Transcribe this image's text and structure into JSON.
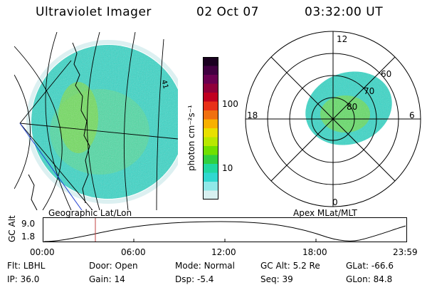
{
  "header": {
    "instrument": "Ultraviolet Imager",
    "date": "02 Oct 07",
    "time": "03:32:00 UT"
  },
  "colorbar": {
    "unit_label": "photon cm⁻²s⁻¹",
    "ticks": [
      "100",
      "10"
    ],
    "colors": [
      "#1a0020",
      "#400040",
      "#6a0050",
      "#90003a",
      "#c00020",
      "#e83018",
      "#f07010",
      "#f8b000",
      "#e8e000",
      "#b8e800",
      "#70e000",
      "#30d040",
      "#20d8a0",
      "#30d8d0",
      "#90e8e8",
      "#d8f0f0"
    ]
  },
  "map_left": {
    "label": "Geographic Lat/Lon",
    "contour_label": "41"
  },
  "map_right": {
    "label": "Apex MLat/MLT",
    "mlt_labels": {
      "top": "12",
      "left": "18",
      "right": "6",
      "bottom": "0"
    },
    "lat_labels": [
      "60",
      "70",
      "80"
    ]
  },
  "altitude_plot": {
    "ylabel": "GC Alt",
    "yticks": [
      "9.0",
      "1.8"
    ],
    "xticks": [
      "00:00",
      "06:00",
      "12:00",
      "18:00",
      "23:59"
    ],
    "current_time_marker": "03:32"
  },
  "status": {
    "row1": [
      {
        "label": "Flt:",
        "value": "LBHL"
      },
      {
        "label": "Door:",
        "value": "Open"
      },
      {
        "label": "Mode:",
        "value": "Normal"
      },
      {
        "label": "GC Alt:",
        "value": "5.2 Re"
      },
      {
        "label": "GLat:",
        "value": "-66.6"
      }
    ],
    "row2": [
      {
        "label": "IP:",
        "value": "36.0"
      },
      {
        "label": "Gain:",
        "value": "14"
      },
      {
        "label": "Dsp:",
        "value": "-5.4"
      },
      {
        "label": "Seq:",
        "value": "39"
      },
      {
        "label": "GLon:",
        "value": "84.8"
      }
    ]
  },
  "colors": {
    "aurora_main": "#30d8d0",
    "aurora_bright": "#70e000",
    "marker": "#c04040"
  }
}
